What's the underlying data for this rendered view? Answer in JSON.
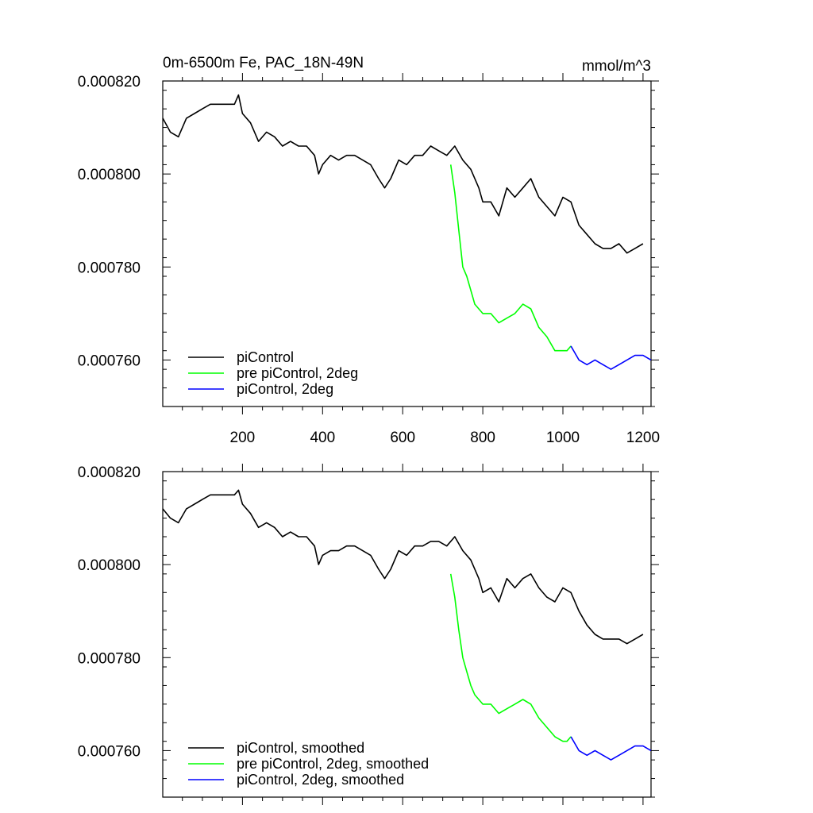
{
  "chart_data": [
    {
      "type": "line",
      "title": "0m-6500m Fe, PAC_18N-49N",
      "units": "mmol/m^3",
      "xlim": [
        1,
        1220
      ],
      "ylim": [
        0.00075,
        0.00082
      ],
      "xticks": [
        200,
        400,
        600,
        800,
        1000,
        1200
      ],
      "xtick_labels": [
        "200",
        "400",
        "600",
        "800",
        "1000",
        "1200"
      ],
      "yticks": [
        0.00076,
        0.00078,
        0.0008,
        0.00082
      ],
      "ytick_labels": [
        "0.000760",
        "0.000780",
        "0.000800",
        "0.000820"
      ],
      "legend_position": "bottom-left",
      "series": [
        {
          "name": "piControl",
          "color": "#000000",
          "x": [
            1,
            20,
            40,
            60,
            80,
            100,
            120,
            140,
            160,
            180,
            190,
            200,
            220,
            240,
            260,
            280,
            300,
            320,
            340,
            360,
            380,
            390,
            400,
            420,
            440,
            460,
            480,
            500,
            520,
            540,
            555,
            570,
            590,
            610,
            630,
            650,
            670,
            690,
            710,
            730,
            750,
            770,
            790,
            800,
            820,
            840,
            860,
            880,
            900,
            920,
            940,
            960,
            980,
            1000,
            1020,
            1040,
            1060,
            1080,
            1100,
            1120,
            1140,
            1160,
            1180,
            1200
          ],
          "y": [
            0.000812,
            0.000809,
            0.000808,
            0.000812,
            0.000813,
            0.000814,
            0.000815,
            0.000815,
            0.000815,
            0.000815,
            0.000817,
            0.000813,
            0.000811,
            0.000807,
            0.000809,
            0.000808,
            0.000806,
            0.000807,
            0.000806,
            0.000806,
            0.000804,
            0.0008,
            0.000802,
            0.000804,
            0.000803,
            0.000804,
            0.000804,
            0.000803,
            0.000802,
            0.000799,
            0.000797,
            0.000799,
            0.000803,
            0.000802,
            0.000804,
            0.000804,
            0.000806,
            0.000805,
            0.000804,
            0.000806,
            0.000803,
            0.000801,
            0.000797,
            0.000794,
            0.000794,
            0.000791,
            0.000797,
            0.000795,
            0.000797,
            0.000799,
            0.000795,
            0.000793,
            0.000791,
            0.000795,
            0.000794,
            0.000789,
            0.000787,
            0.000785,
            0.000784,
            0.000784,
            0.000785,
            0.000783,
            0.000784,
            0.000785
          ]
        },
        {
          "name": "pre piControl, 2deg",
          "color": "#00ff00",
          "x": [
            720,
            730,
            740,
            750,
            760,
            770,
            780,
            800,
            820,
            840,
            860,
            880,
            900,
            920,
            940,
            960,
            980,
            1000,
            1010,
            1020
          ],
          "y": [
            0.000802,
            0.000796,
            0.000788,
            0.00078,
            0.000778,
            0.000775,
            0.000772,
            0.00077,
            0.00077,
            0.000768,
            0.000769,
            0.00077,
            0.000772,
            0.000771,
            0.000767,
            0.000765,
            0.000762,
            0.000762,
            0.000762,
            0.000763
          ]
        },
        {
          "name": "piControl, 2deg",
          "color": "#0000ff",
          "x": [
            1020,
            1040,
            1060,
            1080,
            1100,
            1120,
            1140,
            1160,
            1180,
            1200,
            1220
          ],
          "y": [
            0.000763,
            0.00076,
            0.000759,
            0.00076,
            0.000759,
            0.000758,
            0.000759,
            0.00076,
            0.000761,
            0.000761,
            0.00076
          ]
        }
      ]
    },
    {
      "type": "line",
      "xlim": [
        1,
        1220
      ],
      "ylim": [
        0.00075,
        0.00082
      ],
      "xticks": [
        200,
        400,
        600,
        800,
        1000,
        1200
      ],
      "yticks": [
        0.00076,
        0.00078,
        0.0008,
        0.00082
      ],
      "ytick_labels": [
        "0.000760",
        "0.000780",
        "0.000800",
        "0.000820"
      ],
      "legend_position": "bottom-left",
      "series": [
        {
          "name": "piControl, smoothed",
          "color": "#000000",
          "x": [
            1,
            20,
            40,
            60,
            80,
            100,
            120,
            140,
            160,
            180,
            190,
            200,
            220,
            240,
            260,
            280,
            300,
            320,
            340,
            360,
            380,
            390,
            400,
            420,
            440,
            460,
            480,
            500,
            520,
            540,
            555,
            570,
            590,
            610,
            630,
            650,
            670,
            690,
            710,
            730,
            750,
            770,
            790,
            800,
            820,
            840,
            860,
            880,
            900,
            920,
            940,
            960,
            980,
            1000,
            1020,
            1040,
            1060,
            1080,
            1100,
            1120,
            1140,
            1160,
            1180,
            1200
          ],
          "y": [
            0.000812,
            0.00081,
            0.000809,
            0.000812,
            0.000813,
            0.000814,
            0.000815,
            0.000815,
            0.000815,
            0.000815,
            0.000816,
            0.000813,
            0.000811,
            0.000808,
            0.000809,
            0.000808,
            0.000806,
            0.000807,
            0.000806,
            0.000806,
            0.000804,
            0.0008,
            0.000802,
            0.000803,
            0.000803,
            0.000804,
            0.000804,
            0.000803,
            0.000802,
            0.000799,
            0.000797,
            0.000799,
            0.000803,
            0.000802,
            0.000804,
            0.000804,
            0.000805,
            0.000805,
            0.000804,
            0.000806,
            0.000803,
            0.000801,
            0.000797,
            0.000794,
            0.000795,
            0.000792,
            0.000797,
            0.000795,
            0.000797,
            0.000798,
            0.000795,
            0.000793,
            0.000792,
            0.000795,
            0.000794,
            0.00079,
            0.000787,
            0.000785,
            0.000784,
            0.000784,
            0.000784,
            0.000783,
            0.000784,
            0.000785
          ]
        },
        {
          "name": "pre piControl, 2deg, smoothed",
          "color": "#00ff00",
          "x": [
            720,
            730,
            740,
            750,
            760,
            770,
            780,
            800,
            820,
            840,
            860,
            880,
            900,
            920,
            940,
            960,
            980,
            1000,
            1010,
            1020
          ],
          "y": [
            0.000798,
            0.000793,
            0.000786,
            0.00078,
            0.000777,
            0.000774,
            0.000772,
            0.00077,
            0.00077,
            0.000768,
            0.000769,
            0.00077,
            0.000771,
            0.00077,
            0.000767,
            0.000765,
            0.000763,
            0.000762,
            0.000762,
            0.000763
          ]
        },
        {
          "name": "piControl, 2deg, smoothed",
          "color": "#0000ff",
          "x": [
            1020,
            1040,
            1060,
            1080,
            1100,
            1120,
            1140,
            1160,
            1180,
            1200,
            1220
          ],
          "y": [
            0.000763,
            0.00076,
            0.000759,
            0.00076,
            0.000759,
            0.000758,
            0.000759,
            0.00076,
            0.000761,
            0.000761,
            0.00076
          ]
        }
      ]
    }
  ]
}
